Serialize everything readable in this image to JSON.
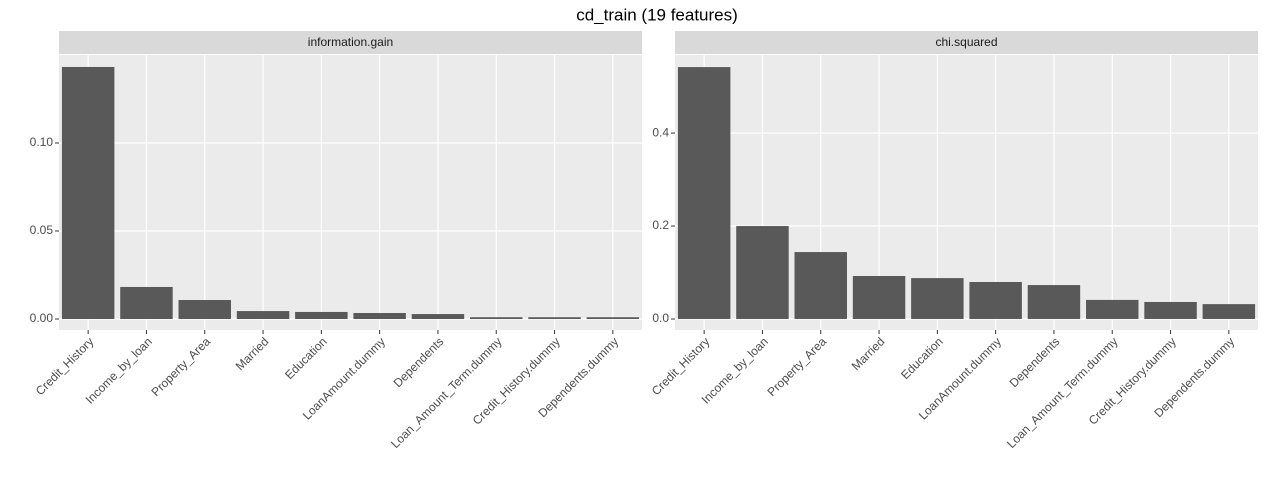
{
  "title": "cd_train (19 features)",
  "chart_data": [
    {
      "type": "bar",
      "title": "information.gain",
      "categories": [
        "Credit_History",
        "Income_by_loan",
        "Property_Area",
        "Married",
        "Education",
        "LoanAmount.dummy",
        "Dependents",
        "Loan_Amount_Term.dummy",
        "Credit_History.dummy",
        "Dependents.dummy"
      ],
      "values": [
        0.1432,
        0.0182,
        0.0108,
        0.0045,
        0.004,
        0.0034,
        0.0028,
        0.001,
        0.001,
        0.001
      ],
      "color": "#595959",
      "ylim": [
        -0.00625,
        0.15
      ],
      "yticks": [
        {
          "value": 0,
          "label": "0.00"
        },
        {
          "value": 0.05,
          "label": "0.05"
        },
        {
          "value": 0.1,
          "label": "0.10"
        }
      ],
      "grid": true
    },
    {
      "type": "bar",
      "title": "chi.squared",
      "categories": [
        "Credit_History",
        "Income_by_loan",
        "Property_Area",
        "Married",
        "Education",
        "LoanAmount.dummy",
        "Dependents",
        "Loan_Amount_Term.dummy",
        "Credit_History.dummy",
        "Dependents.dummy"
      ],
      "values": [
        0.542,
        0.2,
        0.144,
        0.0925,
        0.088,
        0.0796,
        0.073,
        0.041,
        0.0366,
        0.032
      ],
      "color": "#595959",
      "ylim": [
        -0.0237,
        0.568
      ],
      "yticks": [
        {
          "value": 0,
          "label": "0.0"
        },
        {
          "value": 0.2,
          "label": "0.2"
        },
        {
          "value": 0.4,
          "label": "0.4"
        }
      ],
      "grid": true
    }
  ]
}
